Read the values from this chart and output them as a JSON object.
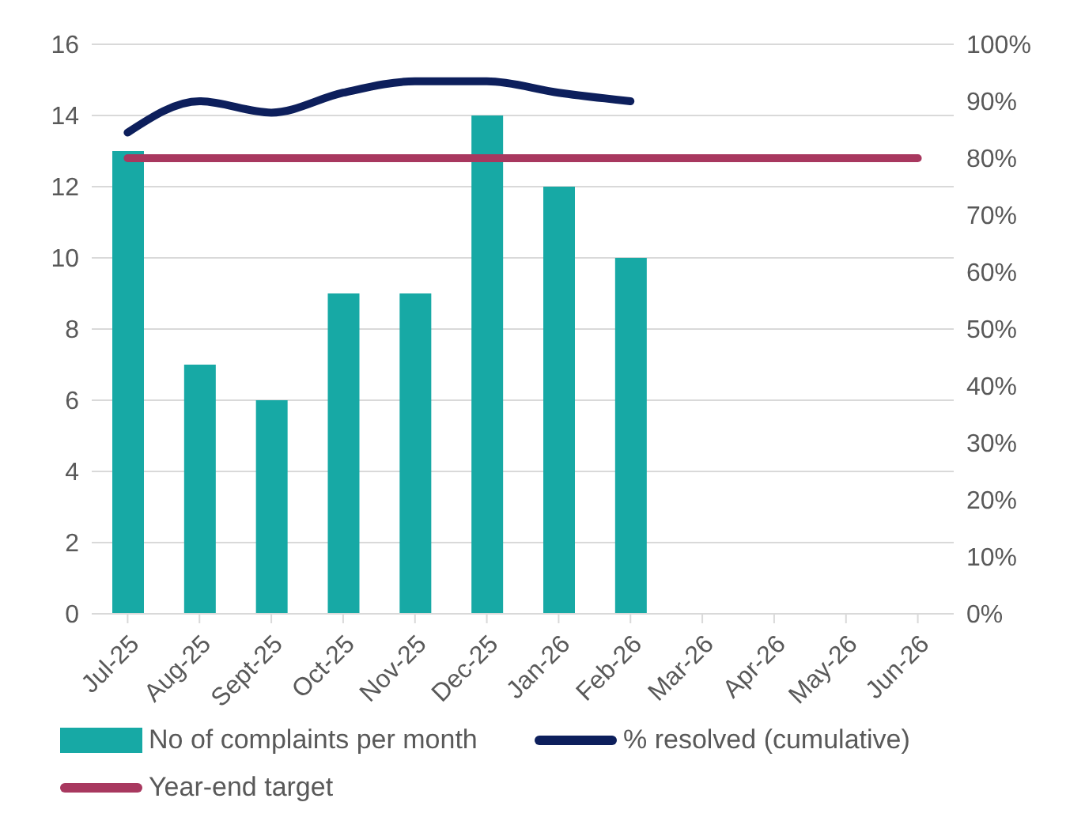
{
  "chart_data": {
    "type": "bar",
    "categories": [
      "Jul-25",
      "Aug-25",
      "Sept-25",
      "Oct-25",
      "Nov-25",
      "Dec-25",
      "Jan-26",
      "Feb-26",
      "Mar-26",
      "Apr-26",
      "May-26",
      "Jun-26"
    ],
    "series": [
      {
        "name": "No of complaints per month",
        "color": "#17a9a5",
        "values": [
          13,
          7,
          6,
          9,
          9,
          14,
          12,
          10,
          null,
          null,
          null,
          null
        ]
      },
      {
        "name": "% resolved (cumulative)",
        "type": "line",
        "axis": "y2",
        "color": "#0d1f5c",
        "values": [
          84.5,
          90,
          88,
          91.5,
          93.5,
          93.5,
          91.5,
          90,
          null,
          null,
          null,
          null
        ]
      },
      {
        "name": "Year-end target",
        "type": "line",
        "axis": "y2",
        "color": "#a8385f",
        "values": [
          80,
          80,
          80,
          80,
          80,
          80,
          80,
          80,
          80,
          80,
          80,
          80
        ]
      }
    ],
    "ylim": [
      0,
      16
    ],
    "yticks": [
      0,
      2,
      4,
      6,
      8,
      10,
      12,
      14,
      16
    ],
    "y2lim": [
      0,
      100
    ],
    "y2ticks": [
      {
        "value": 0,
        "label": "0%"
      },
      {
        "value": 10,
        "label": "10%"
      },
      {
        "value": 20,
        "label": "20%"
      },
      {
        "value": 30,
        "label": "30%"
      },
      {
        "value": 40,
        "label": "40%"
      },
      {
        "value": 50,
        "label": "50%"
      },
      {
        "value": 60,
        "label": "60%"
      },
      {
        "value": 70,
        "label": "70%"
      },
      {
        "value": 80,
        "label": "80%"
      },
      {
        "value": 90,
        "label": "90%"
      },
      {
        "value": 100,
        "label": "100%"
      }
    ],
    "grid": "y",
    "legend": "bottom",
    "marker": "none"
  }
}
